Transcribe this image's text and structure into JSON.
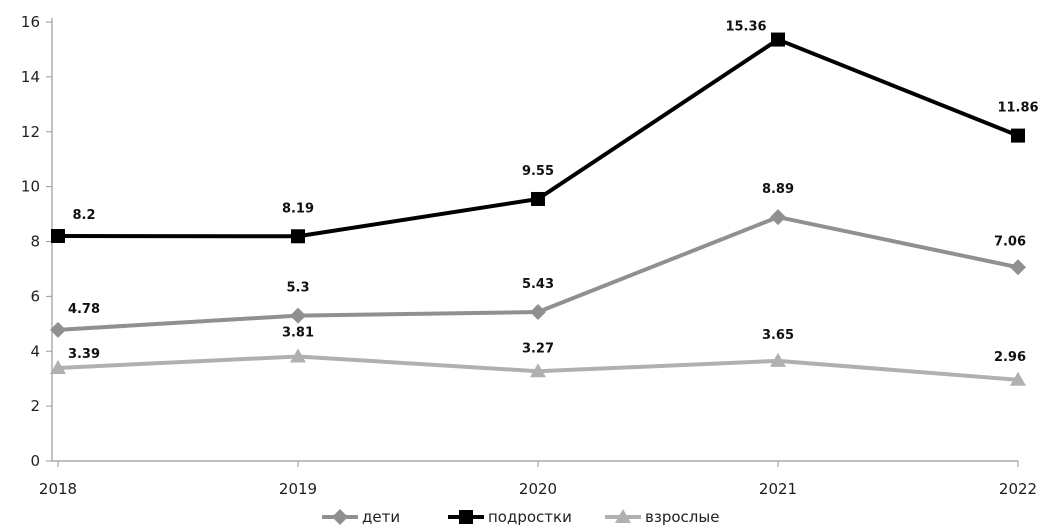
{
  "chart_data": {
    "type": "line",
    "title": "",
    "xlabel": "",
    "ylabel": "",
    "categories": [
      "2018",
      "2019",
      "2020",
      "2021",
      "2022"
    ],
    "ylim": [
      0,
      16
    ],
    "yticks": [
      0,
      2,
      4,
      6,
      8,
      10,
      12,
      14,
      16
    ],
    "grid": false,
    "legend_position": "bottom",
    "series": [
      {
        "name": "дети",
        "values": [
          4.78,
          5.3,
          5.43,
          8.89,
          7.06
        ],
        "labels": [
          "4.78",
          "5.3",
          "5.43",
          "8.89",
          "7.06"
        ],
        "color": "#909090",
        "marker": "diamond"
      },
      {
        "name": "подростки",
        "values": [
          8.2,
          8.19,
          9.55,
          15.36,
          11.86
        ],
        "labels": [
          "8.2",
          "8.19",
          "9.55",
          "15.36",
          "11.86"
        ],
        "color": "#000000",
        "marker": "square"
      },
      {
        "name": "взрослые",
        "values": [
          3.39,
          3.81,
          3.27,
          3.65,
          2.96
        ],
        "labels": [
          "3.39",
          "3.81",
          "3.27",
          "3.65",
          "2.96"
        ],
        "color": "#b0b0b0",
        "marker": "triangle"
      }
    ]
  }
}
